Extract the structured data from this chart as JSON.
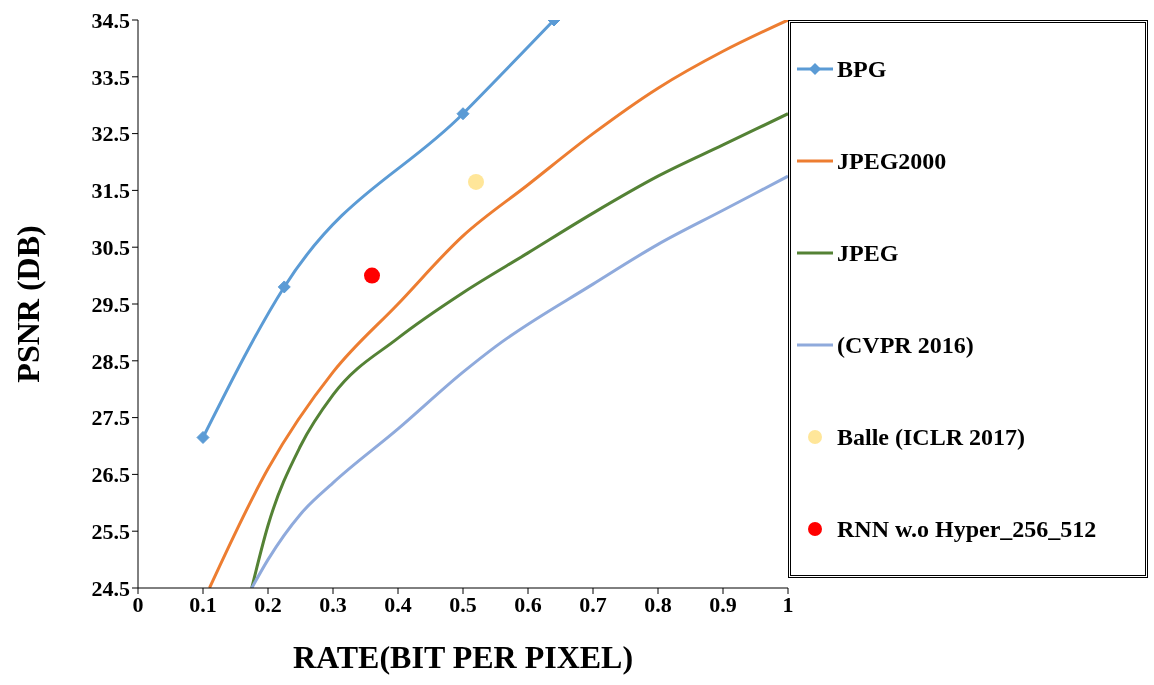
{
  "chart_data": {
    "type": "line",
    "xlabel": "RATE(BIT PER PIXEL)",
    "ylabel": "PSNR (DB)",
    "xlim": [
      0,
      1
    ],
    "xticks": [
      0,
      0.1,
      0.2,
      0.3,
      0.4,
      0.5,
      0.6,
      0.7,
      0.8,
      0.9,
      1
    ],
    "ylim": [
      24.5,
      34.5
    ],
    "yticks": [
      24.5,
      25.5,
      26.5,
      27.5,
      28.5,
      29.5,
      30.5,
      31.5,
      32.5,
      33.5,
      34.5
    ],
    "grid": false,
    "legend": "right",
    "line_style": "solid",
    "series": [
      {
        "name": "BPG",
        "color": "#5b9bd5",
        "marker": "diamond",
        "x": [
          0.1,
          0.225,
          0.5,
          0.64
        ],
        "values": [
          27.15,
          29.8,
          32.85,
          34.5
        ]
      },
      {
        "name": "JPEG2000",
        "color": "#ed7d31",
        "marker": "none",
        "x": [
          0.11,
          0.2,
          0.3,
          0.4,
          0.5,
          0.6,
          0.7,
          0.8,
          0.9,
          1.0
        ],
        "values": [
          24.5,
          26.6,
          28.3,
          29.5,
          30.7,
          31.6,
          32.5,
          33.3,
          33.95,
          34.5
        ]
      },
      {
        "name": "JPEG",
        "color": "#548235",
        "marker": "none",
        "x": [
          0.175,
          0.2,
          0.25,
          0.3,
          0.4,
          0.5,
          0.6,
          0.7,
          0.8,
          0.9,
          1.0
        ],
        "values": [
          24.5,
          25.6,
          27.0,
          27.9,
          28.9,
          29.7,
          30.4,
          31.1,
          31.75,
          32.3,
          32.85
        ]
      },
      {
        "name": "(CVPR 2016)",
        "color": "#8faadc",
        "marker": "none",
        "x": [
          0.175,
          0.2,
          0.25,
          0.3,
          0.4,
          0.5,
          0.55,
          0.7,
          0.8,
          0.9,
          1.0
        ],
        "values": [
          24.5,
          25.0,
          25.8,
          26.35,
          27.3,
          28.3,
          28.75,
          29.85,
          30.55,
          31.15,
          31.75
        ]
      },
      {
        "name": "Balle (ICLR 2017)",
        "type": "scatter",
        "color": "#ffe699",
        "marker": "circle",
        "x": [
          0.52
        ],
        "values": [
          31.65
        ]
      },
      {
        "name": "RNN w.o Hyper_256_512",
        "type": "scatter",
        "color": "#ff0000",
        "marker": "circle",
        "x": [
          0.36
        ],
        "values": [
          30.0
        ]
      }
    ]
  }
}
